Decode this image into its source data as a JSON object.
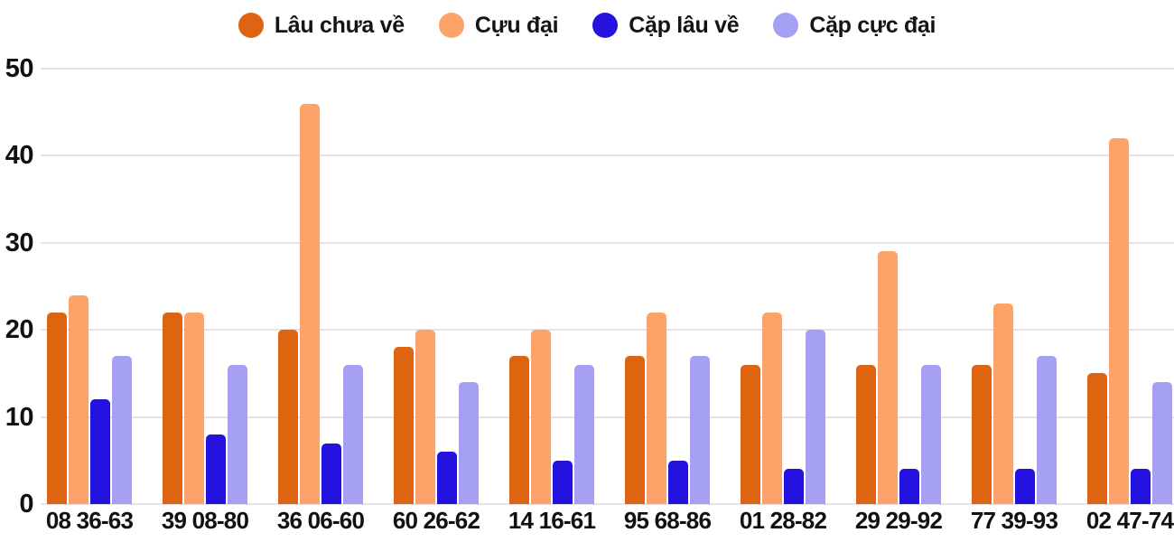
{
  "chart_data": {
    "type": "bar",
    "title": "",
    "categories": [
      "08 36-63",
      "39 08-80",
      "36 06-60",
      "60 26-62",
      "14 16-61",
      "95 68-86",
      "01 28-82",
      "29 29-92",
      "77 39-93",
      "02 47-74"
    ],
    "series": [
      {
        "name": "Lâu chưa về",
        "color": "#df6411",
        "values": [
          22,
          22,
          20,
          18,
          17,
          17,
          16,
          16,
          16,
          15
        ]
      },
      {
        "name": "Cựu đại",
        "color": "#fda36a",
        "values": [
          24,
          22,
          46,
          20,
          20,
          22,
          22,
          29,
          23,
          42
        ]
      },
      {
        "name": "Cặp lâu về",
        "color": "#2612df",
        "values": [
          12,
          8,
          7,
          6,
          5,
          5,
          4,
          4,
          4,
          4
        ]
      },
      {
        "name": "Cặp cực đại",
        "color": "#a6a0f4",
        "values": [
          17,
          16,
          16,
          14,
          16,
          17,
          20,
          16,
          17,
          14
        ]
      }
    ],
    "yticks": [
      0,
      10,
      20,
      30,
      40,
      50
    ],
    "ylim": [
      0,
      50
    ],
    "grid": true,
    "legend_position": "top",
    "colors": {
      "grid": "#e4e4e4",
      "text": "#111111",
      "background": "#ffffff"
    }
  }
}
